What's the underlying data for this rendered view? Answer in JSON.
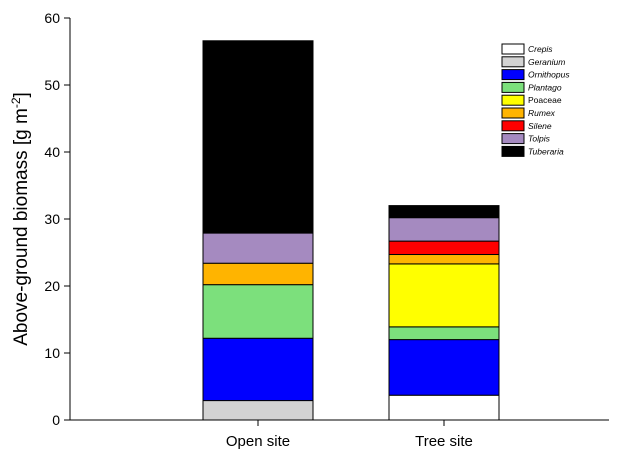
{
  "chart_data": {
    "type": "bar",
    "stacked": true,
    "categories": [
      "Open site",
      "Tree site"
    ],
    "ylabel_main": "Above-ground biomass [g m",
    "ylabel_sup": "-2",
    "ylabel_close": "]",
    "xlabel": "",
    "ylim": [
      0,
      60
    ],
    "yticks": [
      "0",
      "10",
      "20",
      "30",
      "40",
      "50",
      "60"
    ],
    "legend_position": "top-right",
    "grid": false,
    "series": [
      {
        "name": "Crepis",
        "italic": true,
        "color": "#ffffff",
        "values": [
          0,
          3.7
        ]
      },
      {
        "name": "Geranium",
        "italic": true,
        "color": "#d3d3d3",
        "values": [
          2.9,
          0
        ]
      },
      {
        "name": "Ornithopus",
        "italic": true,
        "color": "#0000ff",
        "values": [
          9.3,
          8.3
        ]
      },
      {
        "name": "Plantago",
        "italic": true,
        "color": "#7ce07c",
        "values": [
          8.0,
          1.9
        ]
      },
      {
        "name": "Poaceae",
        "italic": false,
        "color": "#ffff00",
        "values": [
          0,
          9.4
        ]
      },
      {
        "name": "Rumex",
        "italic": true,
        "color": "#ffb400",
        "values": [
          3.2,
          1.4
        ]
      },
      {
        "name": "Silene",
        "italic": true,
        "color": "#ff0000",
        "values": [
          0,
          2.0
        ]
      },
      {
        "name": "Tolpis",
        "italic": true,
        "color": "#a58ac0",
        "values": [
          4.5,
          3.5
        ]
      },
      {
        "name": "Tuberaria",
        "italic": true,
        "color": "#000000",
        "values": [
          28.7,
          1.8
        ]
      }
    ]
  }
}
